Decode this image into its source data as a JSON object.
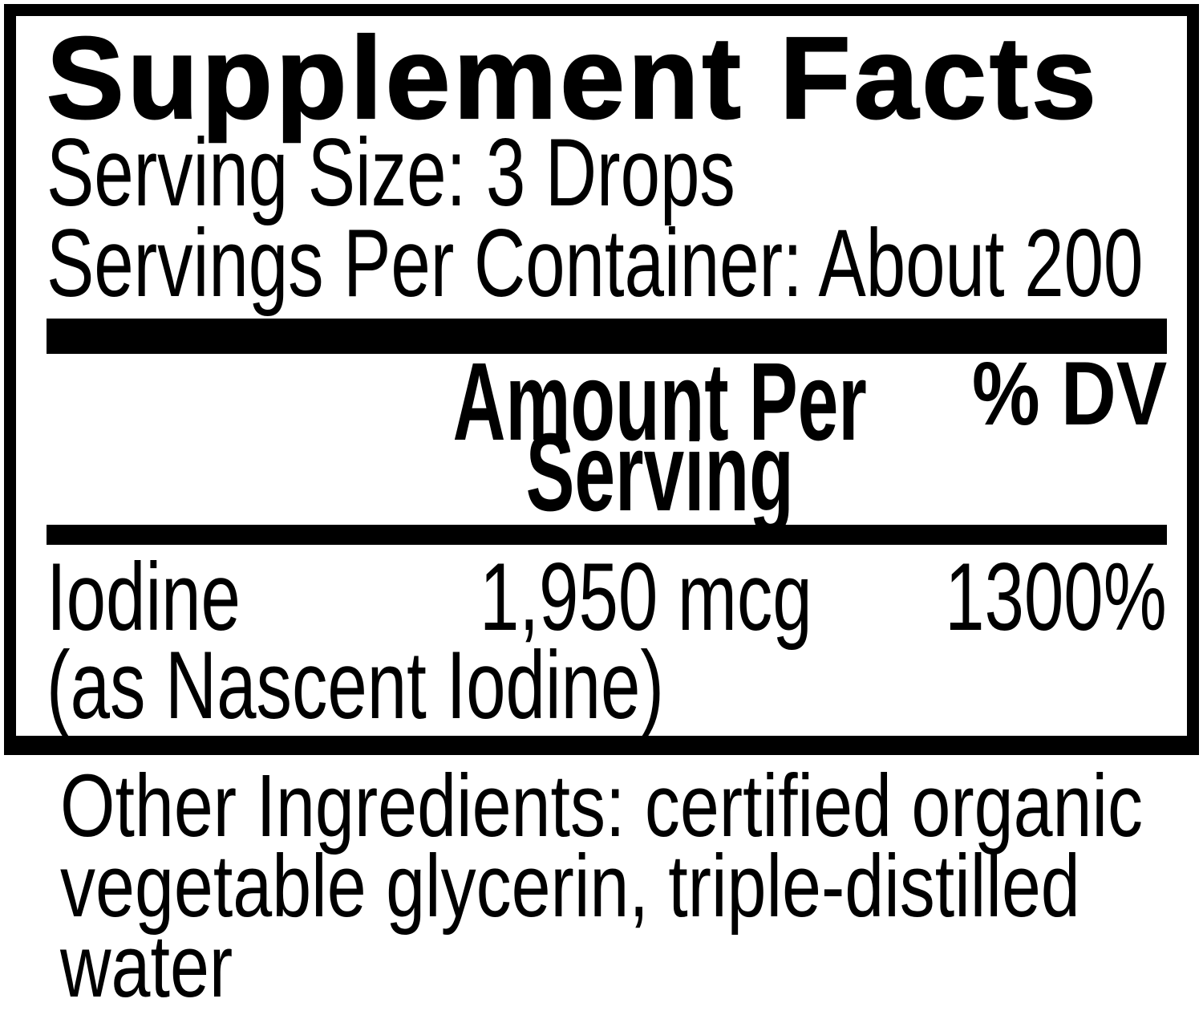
{
  "label": {
    "title": "Supplement Facts",
    "serving_size": "Serving Size: 3 Drops",
    "servings_per_container": "Servings Per Container: About 200",
    "columns": {
      "amount": "Amount Per Serving",
      "dv": "% DV"
    },
    "rows": [
      {
        "name": "Iodine",
        "name_note": "(as Nascent Iodine)",
        "amount": "1,950 mcg",
        "dv": "1300%"
      }
    ],
    "other_ingredients": "Other Ingredients: certified organic vegetable glycerin, triple-distilled water"
  },
  "colors": {
    "ink": "#000000",
    "background": "#ffffff"
  }
}
